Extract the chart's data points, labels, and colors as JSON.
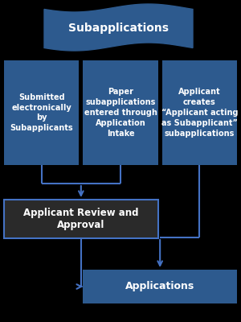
{
  "bg_color": "#000000",
  "banner_color": "#2d5a8e",
  "box_color": "#2d5a8e",
  "review_box_color": "#2a2a2a",
  "app_box_color": "#2d5a8e",
  "text_color": "#ffffff",
  "arrow_color": "#4472c4",
  "banner_text": "Subapplications",
  "box1_text": "Submitted\nelectronically\nby\nSubapplicants",
  "box2_text": "Paper\nsubapplications\nentered through\nApplication\nIntake",
  "box3_text": "Applicant\ncreates\n“Applicant acting\nas Subapplicant”\nsubapplications",
  "review_text": "Applicant Review and\nApproval",
  "app_text": "Applications",
  "fig_w": 3.0,
  "fig_h": 4.0,
  "dpi": 100
}
